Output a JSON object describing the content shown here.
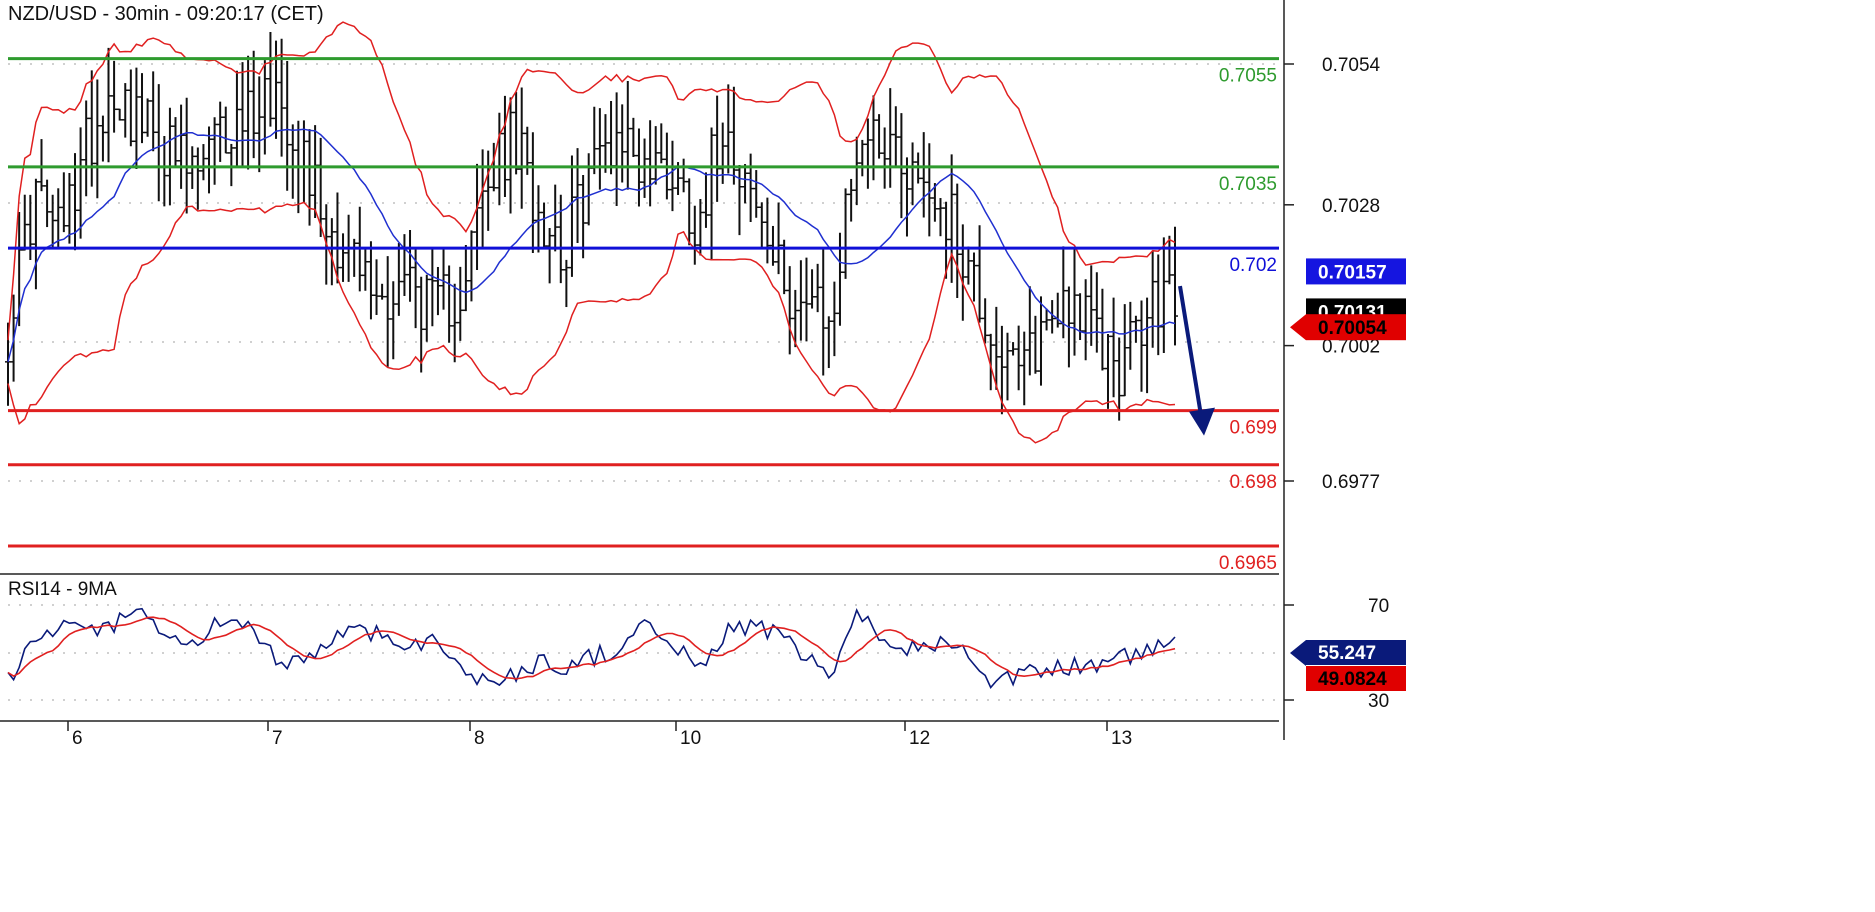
{
  "header": {
    "title": "NZD/USD - 30min - 09:20:17 (CET)"
  },
  "chart_data": [
    {
      "type": "candlestick",
      "title": "NZD/USD - 30min - 09:20:17 (CET)",
      "y_axis": {
        "ticks": [
          "0.7054",
          "0.7028",
          "0.7002",
          "0.6977"
        ],
        "tick_values": [
          0.7054,
          0.7028,
          0.7002,
          0.6977
        ],
        "range": [
          0.6958,
          0.7064
        ]
      },
      "x_axis": {
        "day_labels": [
          "6",
          "7",
          "8",
          "10",
          "12",
          "13"
        ]
      },
      "levels": [
        {
          "label": "0.7055",
          "value": 0.7055,
          "color": "#2e9b2e"
        },
        {
          "label": "0.7035",
          "value": 0.7035,
          "color": "#2e9b2e"
        },
        {
          "label": "0.702",
          "value": 0.702,
          "color": "#1010d8"
        },
        {
          "label": "0.699",
          "value": 0.699,
          "color": "#e02020"
        },
        {
          "label": "0.698",
          "value": 0.698,
          "color": "#e02020"
        },
        {
          "label": "0.6965",
          "value": 0.6965,
          "color": "#e02020"
        }
      ],
      "price_badges": [
        {
          "label": "0.70157",
          "value": 0.70157,
          "bg": "#1515e0",
          "fg": "#ffffff"
        },
        {
          "label": "0.70131",
          "value": 0.70131,
          "bg": "#000000",
          "fg": "#ffffff"
        },
        {
          "label": "0.70054",
          "value": 0.70054,
          "bg": "#e00000",
          "fg": "#000000"
        }
      ],
      "series": [
        {
          "name": "price",
          "approx_close": [
            0.7005,
            0.703,
            0.7022,
            0.704,
            0.705,
            0.7043,
            0.7038,
            0.7033,
            0.704,
            0.7045,
            0.705,
            0.704,
            0.7025,
            0.7018,
            0.701,
            0.7015,
            0.7008,
            0.7012,
            0.703,
            0.704,
            0.7028,
            0.702,
            0.7035,
            0.7042,
            0.7035,
            0.7035,
            0.7025,
            0.7045,
            0.703,
            0.7015,
            0.701,
            0.7005,
            0.704,
            0.7042,
            0.7035,
            0.703,
            0.702,
            0.7005,
            0.6995,
            0.7005,
            0.7012,
            0.7003,
            0.6998,
            0.7008,
            0.7013
          ]
        },
        {
          "name": "upper band",
          "color": "#e02020"
        },
        {
          "name": "lower band",
          "color": "#e02020"
        },
        {
          "name": "moving average",
          "color": "#2030d0"
        }
      ],
      "annotation": {
        "type": "arrow",
        "direction": "down",
        "color": "#0a1a7a",
        "from": 0.7013,
        "to": 0.6985
      }
    },
    {
      "type": "line",
      "title": "RSI14 - 9MA",
      "y_axis": {
        "ticks": [
          "70",
          "30"
        ],
        "tick_values": [
          70,
          30
        ],
        "range": [
          16,
          82
        ]
      },
      "badges": [
        {
          "label": "55.247",
          "value": 55.247,
          "bg": "#0a1a7a",
          "fg": "#ffffff"
        },
        {
          "label": "49.0824",
          "value": 49.0824,
          "bg": "#e00000",
          "fg": "#000000"
        }
      ],
      "series": [
        {
          "name": "RSI14",
          "color": "#0a1a7a",
          "approx": [
            38,
            55,
            60,
            58,
            62,
            66,
            56,
            52,
            64,
            60,
            48,
            46,
            54,
            60,
            58,
            52,
            57,
            42,
            38,
            40,
            46,
            44,
            48,
            52,
            60,
            56,
            42,
            58,
            62,
            58,
            48,
            40,
            64,
            58,
            52,
            54,
            50,
            34,
            40,
            42,
            44,
            45,
            48,
            50,
            55
          ]
        },
        {
          "name": "9MA",
          "color": "#e02020"
        }
      ]
    }
  ]
}
